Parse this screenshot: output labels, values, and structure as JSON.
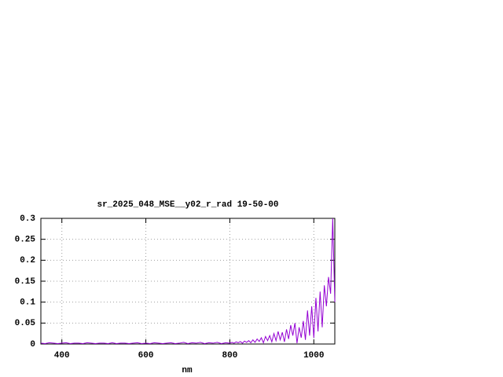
{
  "chart_data": {
    "type": "line",
    "title": "sr_2025_048_MSE__y02_r_rad 19-50-00",
    "x_label": "nm",
    "color": "#9400d3",
    "grid": true,
    "xlim": [
      350,
      1050
    ],
    "ylim": [
      0,
      0.3
    ],
    "xticks": [
      400,
      600,
      800,
      1000
    ],
    "yticks": [
      0,
      0.05,
      0.1,
      0.15,
      0.2,
      0.25,
      0.3
    ],
    "x": [
      350,
      360,
      370,
      380,
      390,
      400,
      410,
      420,
      430,
      440,
      450,
      460,
      470,
      480,
      490,
      500,
      510,
      520,
      530,
      540,
      550,
      560,
      570,
      580,
      590,
      600,
      610,
      620,
      630,
      640,
      650,
      660,
      670,
      680,
      690,
      700,
      710,
      720,
      730,
      740,
      750,
      760,
      770,
      780,
      790,
      800,
      805,
      810,
      815,
      820,
      825,
      830,
      835,
      840,
      845,
      850,
      855,
      860,
      865,
      870,
      875,
      880,
      885,
      890,
      895,
      900,
      905,
      910,
      915,
      920,
      925,
      930,
      935,
      940,
      945,
      950,
      955,
      960,
      965,
      970,
      975,
      980,
      985,
      990,
      995,
      1000,
      1005,
      1010,
      1015,
      1020,
      1025,
      1030,
      1035,
      1040,
      1045,
      1050
    ],
    "values": [
      0.002,
      0.001,
      0.003,
      0.002,
      0.001,
      0.002,
      0.003,
      0.001,
      0.002,
      0.002,
      0.001,
      0.003,
      0.002,
      0.001,
      0.002,
      0.002,
      0.001,
      0.003,
      0.001,
      0.002,
      0.002,
      0.001,
      0.002,
      0.003,
      0.001,
      0.002,
      0.001,
      0.003,
      0.002,
      0.001,
      0.002,
      0.003,
      0.001,
      0.002,
      0.004,
      0.001,
      0.003,
      0.002,
      0.004,
      0.001,
      0.003,
      0.002,
      0.004,
      0.001,
      0.003,
      0.002,
      0.004,
      0.002,
      0.005,
      0.003,
      0.006,
      0.002,
      0.007,
      0.004,
      0.008,
      0.003,
      0.01,
      0.004,
      0.012,
      0.006,
      0.015,
      0.003,
      0.018,
      0.008,
      0.02,
      0.005,
      0.025,
      0.008,
      0.03,
      0.01,
      0.028,
      0.005,
      0.035,
      0.012,
      0.045,
      0.02,
      0.05,
      0.002,
      0.04,
      0.015,
      0.055,
      0.01,
      0.08,
      0.02,
      0.09,
      0.015,
      0.11,
      0.03,
      0.125,
      0.04,
      0.14,
      0.09,
      0.16,
      0.12,
      0.3,
      0.1
    ]
  }
}
